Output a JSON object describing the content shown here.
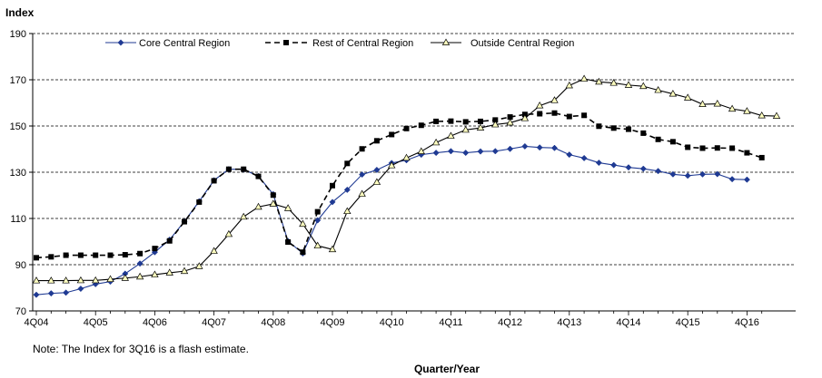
{
  "chart_data": {
    "type": "line",
    "ylabel": "Index",
    "xlabel": "Quarter/Year",
    "note": "Note: The Index for 3Q16 is a flash estimate.",
    "ylim": [
      70,
      190
    ],
    "yticks": [
      "70",
      "90",
      "110",
      "130",
      "150",
      "170",
      "190"
    ],
    "grid": "horizontal dashed",
    "legend_position": "top",
    "x_tick_labels": [
      "4Q04",
      "4Q05",
      "4Q06",
      "4Q07",
      "4Q08",
      "4Q09",
      "4Q10",
      "4Q11",
      "4Q12",
      "4Q13",
      "4Q14",
      "4Q15",
      "4Q16"
    ],
    "x_start_label": "4Q04",
    "series": [
      {
        "name": "Core Central Region",
        "color": "#1f3a93",
        "line_style": "solid",
        "marker": "diamond",
        "values": [
          77,
          77.6,
          77.9,
          79.6,
          81.6,
          82.7,
          86.1,
          90.5,
          95.4,
          100.8,
          108.7,
          117.4,
          126.5,
          131.3,
          131.2,
          128.3,
          120.5,
          100.2,
          94.9,
          109.2,
          117.1,
          122.4,
          129,
          131,
          134,
          135.2,
          137.6,
          138.4,
          139.1,
          138.4,
          139,
          139.1,
          140.1,
          141.2,
          140.7,
          140.5,
          137.6,
          136.1,
          134.1,
          133.1,
          132.1,
          131.5,
          130.5,
          129.1,
          128.5,
          129.1,
          129.2,
          127,
          126.8
        ]
      },
      {
        "name": "Rest of Central Region",
        "color": "#000000",
        "line_style": "dashed",
        "marker": "square",
        "values": [
          93,
          93.4,
          94.1,
          94.1,
          94.1,
          94.1,
          94.3,
          94.8,
          97,
          100.3,
          108.6,
          117.1,
          126.3,
          131.3,
          131.3,
          128.2,
          120.1,
          99.8,
          95.4,
          112.9,
          124.2,
          133.8,
          140.1,
          143.6,
          146.3,
          148.9,
          150.3,
          152,
          152.1,
          151.8,
          152,
          152.6,
          153.9,
          155,
          155.3,
          155.6,
          154.1,
          154.6,
          149.9,
          149.1,
          148.6,
          146.9,
          144.2,
          143.2,
          140.8,
          140.4,
          140.5,
          140.4,
          138.4,
          136.3
        ]
      },
      {
        "name": "Outside Central Region",
        "color": "#b5b52a",
        "line_style": "solid",
        "marker": "triangle",
        "values": [
          83.1,
          83.1,
          83.1,
          83.2,
          83.2,
          83.7,
          84.2,
          84.8,
          85.7,
          86.5,
          87.2,
          89.3,
          95.9,
          103.2,
          110.7,
          115,
          116.3,
          114.4,
          107.6,
          98.2,
          96.6,
          113.1,
          120.6,
          125.7,
          132.9,
          136.2,
          139,
          142.8,
          145.7,
          148.3,
          149.2,
          150.6,
          151.4,
          153.3,
          158.8,
          161.1,
          167.5,
          170.4,
          169.1,
          168.6,
          167.7,
          167.2,
          165.5,
          163.9,
          162.2,
          159.4,
          159.6,
          157.4,
          156.4,
          154.5,
          154.3
        ]
      }
    ]
  }
}
